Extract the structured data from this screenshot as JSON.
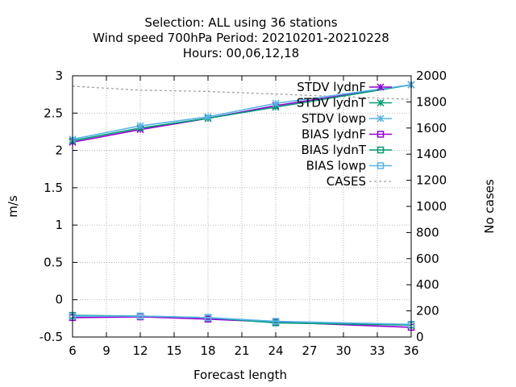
{
  "chart_data": {
    "type": "line",
    "title_lines": [
      "Selection: ALL using    36 stations",
      "Wind speed 700hPa   Period: 20210201-20210228",
      "Hours:  00,06,12,18"
    ],
    "xlabel": "Forecast length",
    "ylabel": "m/s",
    "y2label": "No cases",
    "xlim": [
      6,
      36
    ],
    "ylim": [
      -0.5,
      3
    ],
    "y2lim": [
      0,
      2000
    ],
    "xticks": [
      6,
      9,
      12,
      15,
      18,
      21,
      24,
      27,
      30,
      33,
      36
    ],
    "yticks": [
      -0.5,
      0,
      0.5,
      1,
      1.5,
      2,
      2.5,
      3
    ],
    "yticklabels": [
      "-0.5",
      "0",
      "0.5",
      "1",
      "1.5",
      "2",
      "2.5",
      "3"
    ],
    "y2ticks": [
      0,
      200,
      400,
      600,
      800,
      1000,
      1200,
      1400,
      1600,
      1800,
      2000
    ],
    "grid": true,
    "legend_position": "top-right",
    "x": [
      6,
      12,
      18,
      24,
      36
    ],
    "series": [
      {
        "name": "STDV lydnF",
        "color": "#9400d3",
        "marker": "x",
        "axis": "y",
        "values": [
          2.11,
          2.28,
          2.43,
          2.6,
          2.88
        ]
      },
      {
        "name": "STDV lydnT",
        "color": "#009e73",
        "marker": "x",
        "axis": "y",
        "values": [
          2.13,
          2.3,
          2.43,
          2.58,
          2.88
        ]
      },
      {
        "name": "STDV lowp",
        "color": "#56b4e9",
        "marker": "x",
        "axis": "y",
        "values": [
          2.15,
          2.33,
          2.45,
          2.63,
          2.88
        ]
      },
      {
        "name": "BIAS lydnF",
        "color": "#9400d3",
        "marker": "square",
        "axis": "y",
        "values": [
          -0.24,
          -0.23,
          -0.26,
          -0.3,
          -0.37
        ]
      },
      {
        "name": "BIAS lydnT",
        "color": "#009e73",
        "marker": "square",
        "axis": "y",
        "values": [
          -0.21,
          -0.22,
          -0.24,
          -0.31,
          -0.34
        ]
      },
      {
        "name": "BIAS lowp",
        "color": "#56b4e9",
        "marker": "square",
        "axis": "y",
        "values": [
          -0.22,
          -0.22,
          -0.24,
          -0.29,
          -0.33
        ]
      },
      {
        "name": "CASES",
        "color": "#a0a0a0",
        "marker": "none",
        "dash": true,
        "axis": "y2",
        "values": [
          1920,
          1890,
          1880,
          1860,
          1820
        ]
      }
    ]
  }
}
